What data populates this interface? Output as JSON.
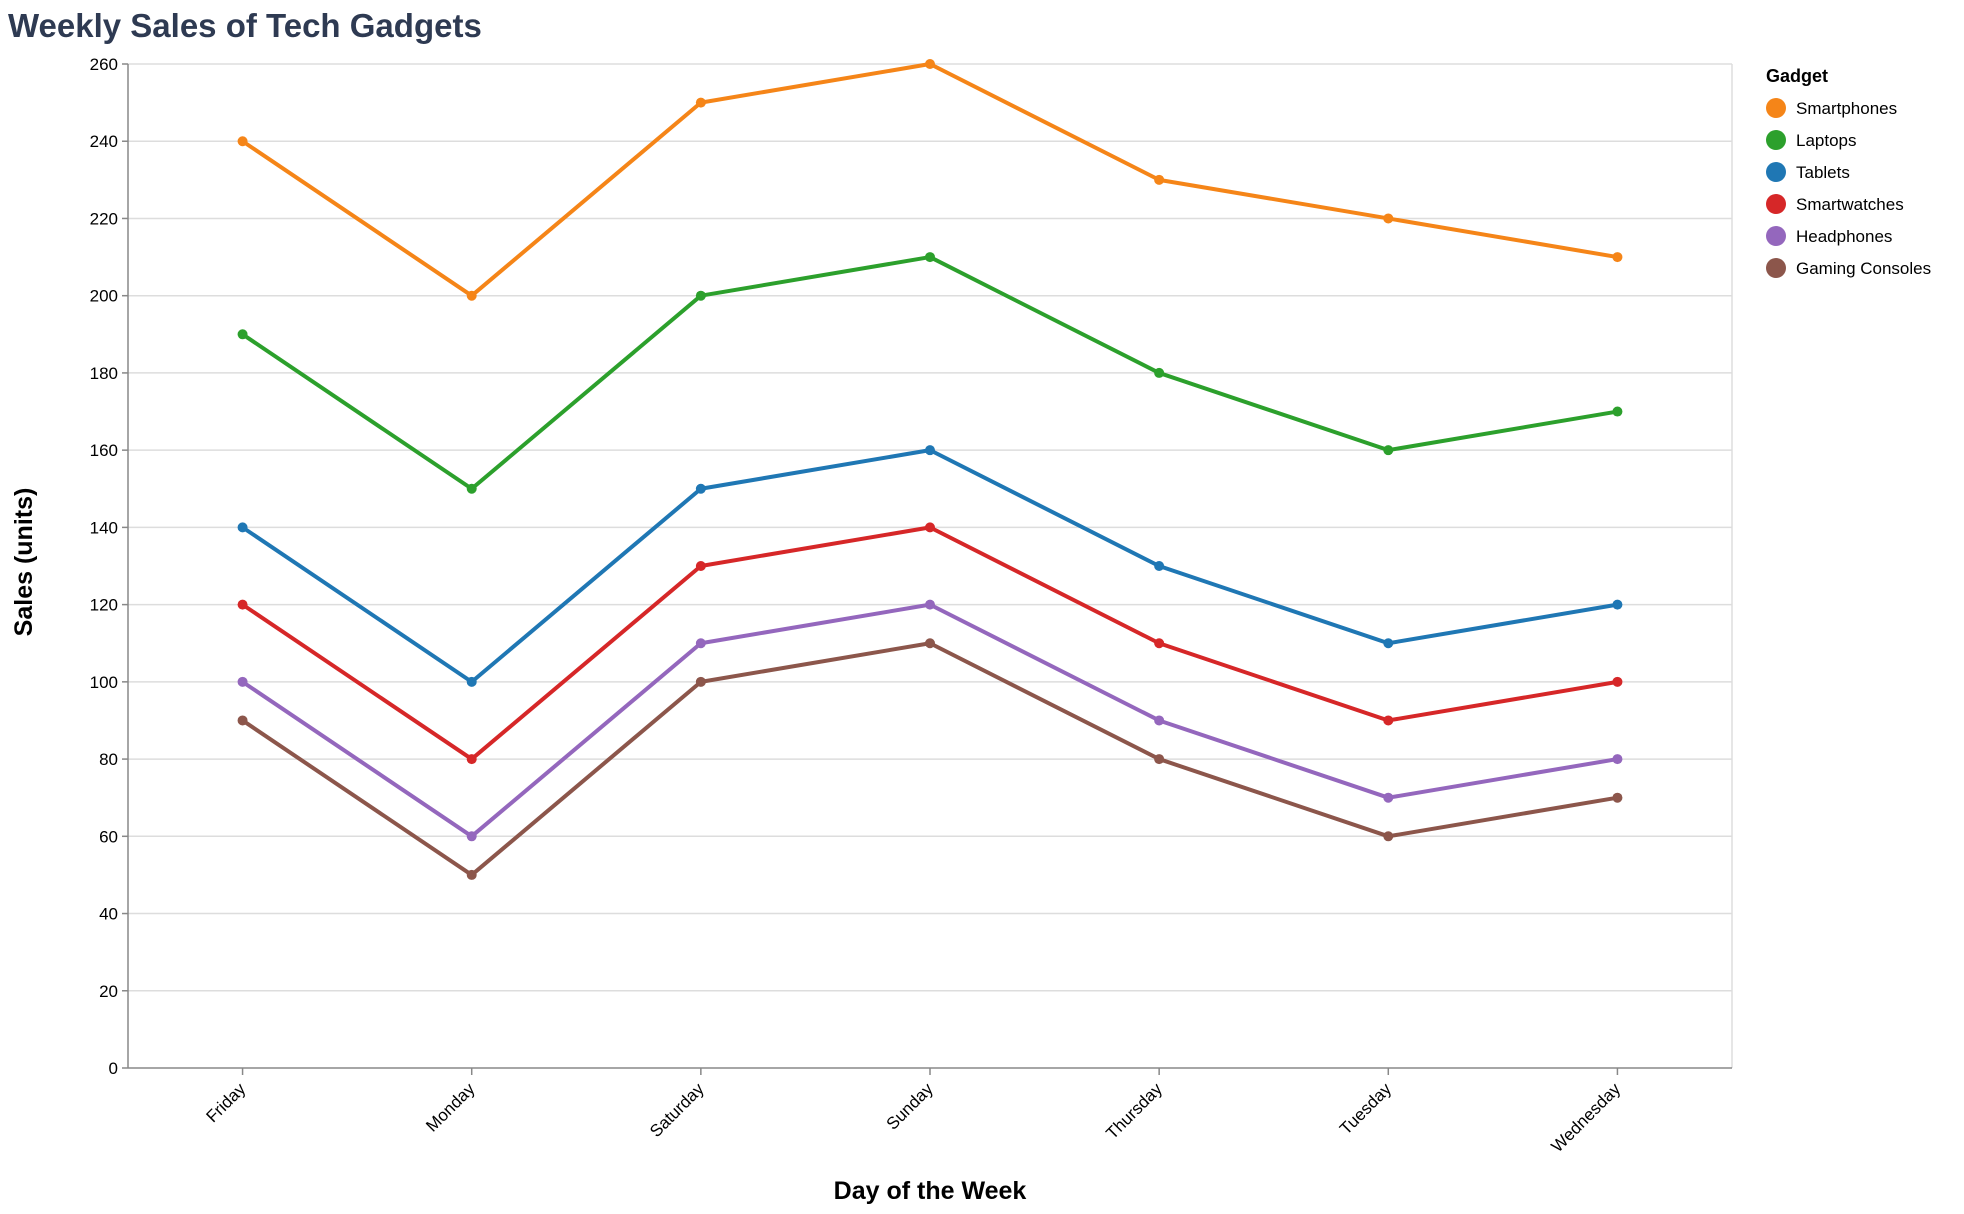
{
  "chart_data": {
    "type": "line",
    "title": "Weekly Sales of Tech Gadgets",
    "xlabel": "Day of the Week",
    "ylabel": "Sales (units)",
    "categories": [
      "Friday",
      "Monday",
      "Saturday",
      "Sunday",
      "Thursday",
      "Tuesday",
      "Wednesday"
    ],
    "ylim": [
      0,
      260
    ],
    "yticks": [
      0,
      20,
      40,
      60,
      80,
      100,
      120,
      140,
      160,
      180,
      200,
      220,
      240,
      260
    ],
    "grid": true,
    "legend_title": "Gadget",
    "legend_position": "right",
    "series": [
      {
        "name": "Smartphones",
        "color": "#f58518",
        "values": [
          240,
          200,
          250,
          260,
          230,
          220,
          210
        ]
      },
      {
        "name": "Laptops",
        "color": "#2ca02c",
        "values": [
          190,
          150,
          200,
          210,
          180,
          160,
          170
        ]
      },
      {
        "name": "Tablets",
        "color": "#1f77b4",
        "values": [
          140,
          100,
          150,
          160,
          130,
          110,
          120
        ]
      },
      {
        "name": "Smartwatches",
        "color": "#d62728",
        "values": [
          120,
          80,
          130,
          140,
          110,
          90,
          100
        ]
      },
      {
        "name": "Headphones",
        "color": "#9467bd",
        "values": [
          100,
          60,
          110,
          120,
          90,
          70,
          80
        ]
      },
      {
        "name": "Gaming Consoles",
        "color": "#8c564b",
        "values": [
          90,
          50,
          100,
          110,
          80,
          60,
          70
        ]
      }
    ]
  }
}
